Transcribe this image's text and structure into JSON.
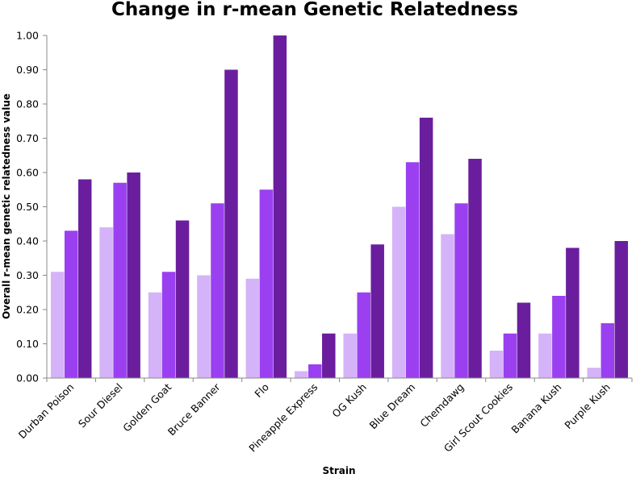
{
  "chart_data": {
    "type": "bar",
    "title": "Change in r-mean Genetic Relatedness",
    "xlabel": "Strain",
    "ylabel": "Overall r-mean genetic relatedness  value",
    "ylim": [
      0,
      1.0
    ],
    "yticks": [
      "0.00",
      "0.10",
      "0.20",
      "0.30",
      "0.40",
      "0.50",
      "0.60",
      "0.70",
      "0.80",
      "0.90",
      "1.00"
    ],
    "grid": false,
    "legend": "none",
    "categories": [
      "Durban Poison",
      "Sour Diesel",
      "Golden Goat",
      "Bruce Banner",
      "Flo",
      "Pineapple Express",
      "OG Kush",
      "Blue Dream",
      "Chemdawg",
      "Girl Scout Cookies",
      "Banana Kush",
      "Purple Kush"
    ],
    "series": [
      {
        "color": "#d5b3f8",
        "values": [
          0.31,
          0.44,
          0.25,
          0.3,
          0.29,
          0.02,
          0.13,
          0.5,
          0.42,
          0.08,
          0.13,
          0.03
        ]
      },
      {
        "color": "#9a40f0",
        "values": [
          0.43,
          0.57,
          0.31,
          0.51,
          0.55,
          0.04,
          0.25,
          0.63,
          0.51,
          0.13,
          0.24,
          0.16
        ]
      },
      {
        "color": "#6a1e9e",
        "values": [
          0.58,
          0.6,
          0.46,
          0.9,
          1.0,
          0.13,
          0.39,
          0.76,
          0.64,
          0.22,
          0.38,
          0.4
        ]
      }
    ]
  }
}
